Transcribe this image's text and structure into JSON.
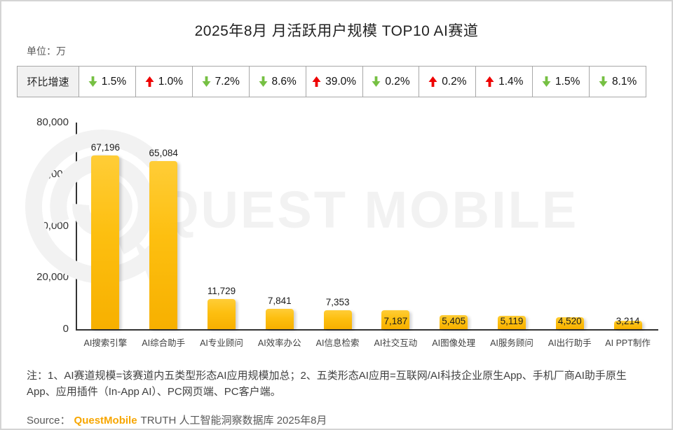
{
  "page": {
    "title": "2025年8月 月活跃用户规模 TOP10 AI赛道",
    "unit_label": "单位：万"
  },
  "growth_table": {
    "header": "环比增速",
    "cells": [
      {
        "direction": "down",
        "value": "1.5%"
      },
      {
        "direction": "up",
        "value": "1.0%"
      },
      {
        "direction": "down",
        "value": "7.2%"
      },
      {
        "direction": "down",
        "value": "8.6%"
      },
      {
        "direction": "up",
        "value": "39.0%"
      },
      {
        "direction": "down",
        "value": "0.2%"
      },
      {
        "direction": "up",
        "value": "0.2%"
      },
      {
        "direction": "up",
        "value": "1.4%"
      },
      {
        "direction": "down",
        "value": "1.5%"
      },
      {
        "direction": "down",
        "value": "8.1%"
      }
    ],
    "colors": {
      "up": "#EE0000",
      "down": "#76C043"
    }
  },
  "chart_data": {
    "type": "bar",
    "title": "2025年8月 月活跃用户规模 TOP10 AI赛道",
    "unit": "万",
    "categories": [
      "AI搜索引擎",
      "AI综合助手",
      "AI专业顾问",
      "AI效率办公",
      "AI信息检索",
      "AI社交互动",
      "AI图像处理",
      "AI服务顾问",
      "AI出行助手",
      "AI PPT制作"
    ],
    "values": [
      67196,
      65084,
      11729,
      7841,
      7353,
      7187,
      5405,
      5119,
      4520,
      3214
    ],
    "value_labels": [
      "67,196",
      "65,084",
      "11,729",
      "7,841",
      "7,353",
      "7,187",
      "5,405",
      "5,119",
      "4,520",
      "3,214"
    ],
    "mom_growth": [
      "-1.5%",
      "+1.0%",
      "-7.2%",
      "-8.6%",
      "+39.0%",
      "-0.2%",
      "+0.2%",
      "+1.4%",
      "-1.5%",
      "-8.1%"
    ],
    "ylim": [
      0,
      80000
    ],
    "yticks": [
      {
        "label": "80,000",
        "value": 80000
      },
      {
        "label": "60,000",
        "value": 60000
      },
      {
        "label": "40,000",
        "value": 40000
      },
      {
        "label": "20,000",
        "value": 20000
      },
      {
        "label": "0",
        "value": 0
      }
    ],
    "grid": false,
    "legend": false,
    "bar_color_top": "#FFCD37",
    "bar_color_bottom": "#F7B000"
  },
  "watermark": {
    "text": "QUEST MOBILE"
  },
  "footnote": {
    "text": "注：1、AI赛道规模=该赛道内五类型形态AI应用规模加总；2、五类形态AI应用=互联网/AI科技企业原生App、手机厂商AI助手原生App、应用插件（In-App AI）、PC网页端、PC客户端。"
  },
  "source": {
    "prefix": "Source：",
    "brand": "QuestMobile",
    "suffix": "TRUTH 人工智能洞察数据库 2025年8月",
    "brand_color": "#F7A600"
  }
}
